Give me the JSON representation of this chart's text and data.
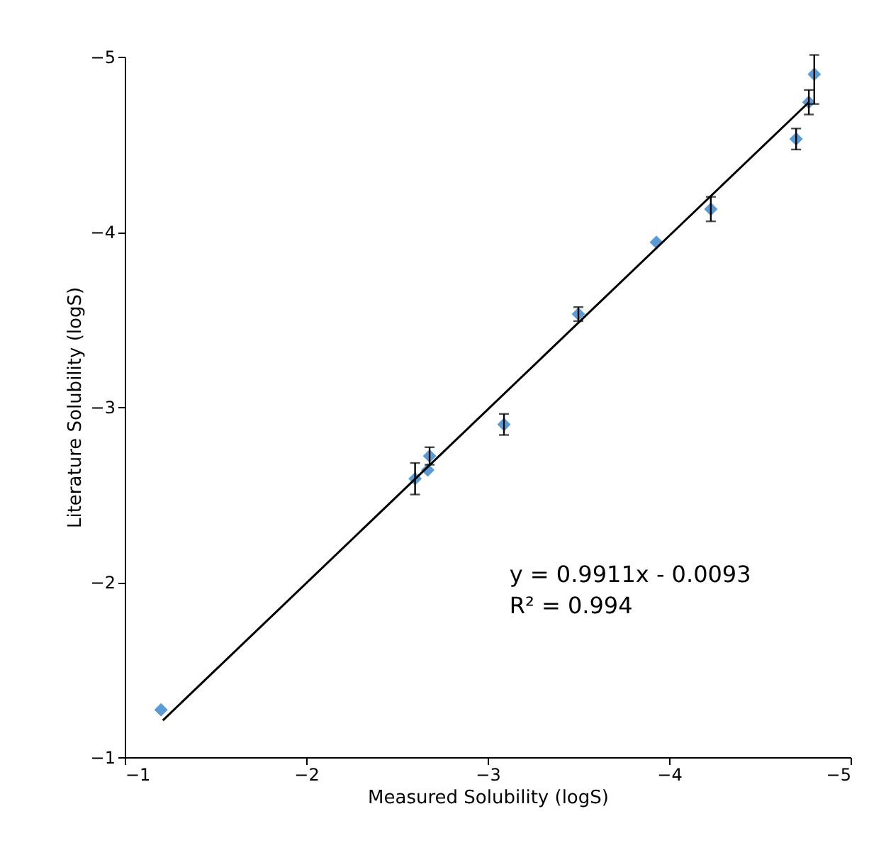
{
  "chart_data": {
    "type": "scatter",
    "xlabel": "Measured Solubility (logS)",
    "ylabel": "Literature Solubility (logS)",
    "x": [
      -1.2,
      -2.6,
      -2.67,
      -2.68,
      -3.09,
      -3.5,
      -3.93,
      -4.23,
      -4.7,
      -4.77,
      -4.8
    ],
    "series": [
      {
        "color": "#5b9bd5",
        "marker": "diamond",
        "values": [
          -1.27,
          -2.59,
          -2.64,
          -2.72,
          -2.9,
          -3.53,
          -3.94,
          -4.13,
          -4.53,
          -4.74,
          -4.9
        ],
        "errors": [
          null,
          0.09,
          null,
          0.05,
          0.06,
          0.04,
          null,
          0.07,
          0.06,
          0.07,
          [
            -5.01,
            -4.73
          ]
        ]
      },
      {
        "type": "line",
        "color": "#000000",
        "x": [
          -1.21,
          -4.77
        ],
        "values": [
          -1.21,
          -4.74
        ]
      }
    ],
    "xlim": [
      -1,
      -5
    ],
    "ylim": [
      -1,
      -5
    ],
    "xticks": [
      -1,
      -2,
      -3,
      -4,
      -5
    ],
    "yticks": [
      -1,
      -2,
      -3,
      -4,
      -5
    ],
    "grid": false,
    "annotations": [
      "y = 0.9911x - 0.0093",
      "R² = 0.994"
    ]
  }
}
